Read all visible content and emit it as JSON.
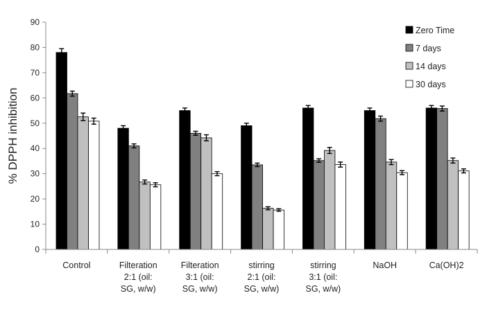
{
  "chart_data": {
    "type": "bar",
    "title": "",
    "xlabel": "",
    "ylabel": "% DPPH inhibition",
    "ylim": [
      0,
      90
    ],
    "ytick_step": 10,
    "grid": false,
    "legend_position": "top-right",
    "categories": [
      [
        "Control"
      ],
      [
        "Filteration",
        "2:1 (oil:",
        "SG, w/w)"
      ],
      [
        "Filteration",
        "3:1 (oil:",
        "SG, w/w)"
      ],
      [
        "stirring",
        "2:1 (oil:",
        "SG, w/w)"
      ],
      [
        "stirring",
        "3:1 (oil:",
        "SG, w/w)"
      ],
      [
        "NaOH"
      ],
      [
        "Ca(OH)2"
      ]
    ],
    "series": [
      {
        "name": "Zero Time",
        "color": "#000000",
        "values": [
          78,
          48,
          55,
          49,
          56,
          55,
          56
        ],
        "errors": [
          1.5,
          1.0,
          1.0,
          1.0,
          1.0,
          1.0,
          1.0
        ]
      },
      {
        "name": "7 days",
        "color": "#808080",
        "values": [
          61.7,
          41,
          46,
          33.5,
          35.2,
          51.8,
          55.8
        ],
        "errors": [
          1.0,
          0.8,
          0.8,
          0.7,
          0.7,
          1.0,
          1.0
        ]
      },
      {
        "name": "14 days",
        "color": "#c0c0c0",
        "values": [
          52.5,
          26.7,
          44.2,
          16.3,
          39.2,
          34.6,
          35.2
        ],
        "errors": [
          1.5,
          0.8,
          1.2,
          0.6,
          1.2,
          1.0,
          1.0
        ]
      },
      {
        "name": "30 days",
        "color": "#ffffff",
        "values": [
          50.8,
          25.6,
          30,
          15.6,
          33.6,
          30.4,
          31.1
        ],
        "errors": [
          1.2,
          0.8,
          0.8,
          0.5,
          1.0,
          0.8,
          0.8
        ]
      }
    ]
  }
}
